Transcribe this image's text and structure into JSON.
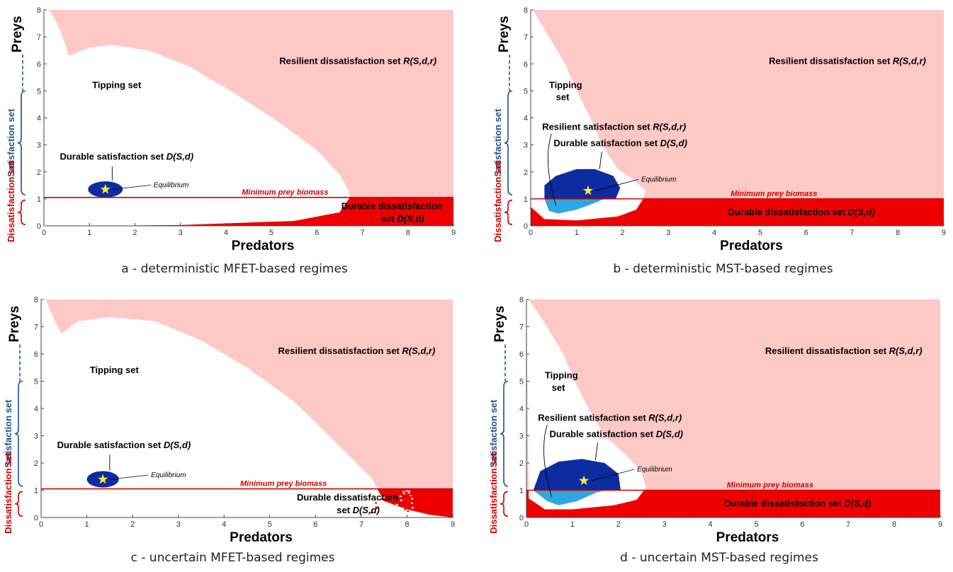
{
  "colors": {
    "resilient_dissatisfaction": "#fdc9c6",
    "durable_dissatisfaction": "#ee0000",
    "durable_satisfaction": "#0d2ca0",
    "resilient_satisfaction": "#2ea8e2",
    "tipping": "#ffffff",
    "threshold_line": "#cc0000",
    "equilibrium_star": "#ffee33",
    "satisfaction_axis": "#1f4e8c",
    "dissatisfaction_axis": "#cc0000"
  },
  "common": {
    "y_side_preys": "Preys",
    "y_side_satisfaction": "Satisfaction set",
    "y_side_dissatisfaction": "Dissatisfaction set",
    "x_label": "Predators",
    "min_prey_label": "Minimum prey biomass",
    "equilibrium_label": "Equilibrium",
    "x_ticks": [
      "0",
      "1",
      "2",
      "3",
      "4",
      "5",
      "6",
      "7",
      "8",
      "9"
    ],
    "y_ticks": [
      "0",
      "1",
      "2",
      "3",
      "4",
      "5",
      "6",
      "7",
      "8"
    ]
  },
  "panels": [
    {
      "caption": "a - deterministic MFET-based regimes",
      "labels": {
        "resilient_dissatisfaction": "Resilient dissatisfaction set ",
        "resilient_dissatisfaction_math": "R(S,d,r)",
        "tipping": "Tipping set",
        "durable_satisfaction": "Durable satisfaction set ",
        "durable_satisfaction_math": "D(S,d)",
        "durable_dissatisfaction_1": "Durable dissatisfaction",
        "durable_dissatisfaction_2": "set ",
        "durable_dissatisfaction_math": "D(S,d)"
      }
    },
    {
      "caption": "b - deterministic MST-based regimes",
      "labels": {
        "resilient_dissatisfaction": "Resilient dissatisfaction set ",
        "resilient_dissatisfaction_math": "R(S,d,r)",
        "tipping_1": "Tipping",
        "tipping_2": "set",
        "resilient_satisfaction": "Resilient satisfaction set ",
        "resilient_satisfaction_math": "R(S,d,r)",
        "durable_satisfaction": "Durable satisfaction set ",
        "durable_satisfaction_math": "D(S,d)",
        "durable_dissatisfaction": "Durable dissatisfaction set ",
        "durable_dissatisfaction_math": "D(S,d)"
      }
    },
    {
      "caption": "c - uncertain MFET-based regimes",
      "labels": {
        "resilient_dissatisfaction": "Resilient dissatisfaction set ",
        "resilient_dissatisfaction_math": "R(S,d,r)",
        "tipping": "Tipping set",
        "durable_satisfaction": "Durable satisfaction set ",
        "durable_satisfaction_math": "D(S,d)",
        "durable_dissatisfaction_1": "Durable dissatisfaction",
        "durable_dissatisfaction_2": "set ",
        "durable_dissatisfaction_math": "D(S,d)"
      }
    },
    {
      "caption": "d - uncertain MST-based regimes",
      "labels": {
        "resilient_dissatisfaction": "Resilient dissatisfaction set ",
        "resilient_dissatisfaction_math": "R(S,d,r)",
        "tipping_1": "Tipping",
        "tipping_2": "set",
        "resilient_satisfaction": "Resilient satisfaction set ",
        "resilient_satisfaction_math": "R(S,d,r)",
        "durable_satisfaction": "Durable satisfaction set ",
        "durable_satisfaction_math": "D(S,d)",
        "durable_dissatisfaction": "Durable dissatisfaction set ",
        "durable_dissatisfaction_math": "D(S,d)"
      }
    }
  ],
  "chart_data": [
    {
      "type": "heatmap",
      "title": "a - deterministic MFET-based regimes",
      "xlabel": "Predators",
      "ylabel": "Preys",
      "xlim": [
        0,
        9
      ],
      "ylim": [
        0,
        8
      ],
      "min_prey_biomass": 1.05,
      "equilibrium": [
        1.35,
        1.35
      ],
      "durable_satisfaction_ellipse": {
        "cx": 1.35,
        "cy": 1.35,
        "rx": 0.38,
        "ry": 0.3
      },
      "tipping_boundary": [
        [
          0.12,
          8
        ],
        [
          0.35,
          7.3
        ],
        [
          0.55,
          6.3
        ],
        [
          1.0,
          6.6
        ],
        [
          1.5,
          6.7
        ],
        [
          2.3,
          6.5
        ],
        [
          3.2,
          5.9
        ],
        [
          4.2,
          4.9
        ],
        [
          5.2,
          3.8
        ],
        [
          6.0,
          2.8
        ],
        [
          6.5,
          1.9
        ],
        [
          6.7,
          1.3
        ],
        [
          6.72,
          1.05
        ]
      ],
      "durable_dissatisfaction_boundary": [
        [
          6.72,
          1.05
        ],
        [
          6.5,
          0.5
        ],
        [
          5.5,
          0.18
        ],
        [
          3.0,
          0.03
        ],
        [
          1.0,
          0.0
        ]
      ]
    },
    {
      "type": "heatmap",
      "title": "b - deterministic MST-based regimes",
      "xlabel": "Predators",
      "ylabel": "Preys",
      "xlim": [
        0,
        9
      ],
      "ylim": [
        0,
        8
      ],
      "min_prey_biomass": 1.0,
      "equilibrium": [
        1.25,
        1.3
      ],
      "durable_satisfaction_boundary": [
        [
          0.3,
          1.0
        ],
        [
          0.3,
          1.5
        ],
        [
          0.55,
          1.85
        ],
        [
          1.0,
          2.1
        ],
        [
          1.4,
          2.1
        ],
        [
          1.8,
          1.85
        ],
        [
          1.95,
          1.4
        ],
        [
          1.85,
          1.0
        ]
      ],
      "resilient_satisfaction_boundary": [
        [
          0.3,
          1.0
        ],
        [
          0.4,
          0.55
        ],
        [
          0.6,
          0.45
        ],
        [
          1.0,
          0.6
        ],
        [
          1.4,
          0.85
        ],
        [
          1.6,
          1.0
        ]
      ],
      "tipping_boundary": [
        [
          0.05,
          8
        ],
        [
          0.4,
          7.0
        ],
        [
          0.75,
          6.0
        ],
        [
          1.0,
          5.0
        ],
        [
          1.3,
          4.0
        ],
        [
          1.55,
          3.0
        ],
        [
          1.9,
          2.1
        ],
        [
          2.25,
          1.7
        ],
        [
          2.5,
          1.3
        ],
        [
          2.45,
          1.0
        ],
        [
          2.3,
          0.6
        ],
        [
          1.9,
          0.35
        ],
        [
          1.0,
          0.2
        ],
        [
          0.3,
          0.25
        ],
        [
          0.0,
          0.7
        ]
      ],
      "durable_dissatisfaction_region": "y < 1.0 outside tipping set"
    },
    {
      "type": "heatmap",
      "title": "c - uncertain MFET-based regimes",
      "xlabel": "Predators",
      "ylabel": "Preys",
      "xlim": [
        0,
        9
      ],
      "ylim": [
        0,
        8
      ],
      "min_prey_biomass": 1.05,
      "equilibrium": [
        1.35,
        1.4
      ],
      "durable_satisfaction_ellipse": {
        "cx": 1.35,
        "cy": 1.4,
        "rx": 0.35,
        "ry": 0.3
      },
      "tipping_boundary": [
        [
          0.1,
          8
        ],
        [
          0.3,
          7.2
        ],
        [
          0.45,
          6.75
        ],
        [
          0.8,
          7.2
        ],
        [
          1.5,
          7.35
        ],
        [
          2.5,
          7.2
        ],
        [
          3.5,
          6.5
        ],
        [
          4.5,
          5.5
        ],
        [
          5.5,
          4.3
        ],
        [
          6.3,
          3.0
        ],
        [
          6.9,
          2.0
        ],
        [
          7.25,
          1.4
        ],
        [
          7.35,
          1.05
        ]
      ],
      "durable_dissatisfaction_boundary": [
        [
          7.35,
          1.05
        ],
        [
          7.5,
          0.6
        ],
        [
          8.0,
          0.3
        ],
        [
          8.5,
          0.1
        ],
        [
          9.0,
          0.0
        ]
      ]
    },
    {
      "type": "heatmap",
      "title": "d - uncertain MST-based regimes",
      "xlabel": "Predators",
      "ylabel": "Preys",
      "xlim": [
        0,
        9
      ],
      "ylim": [
        0,
        8
      ],
      "min_prey_biomass": 1.0,
      "equilibrium": [
        1.25,
        1.35
      ],
      "durable_satisfaction_boundary": [
        [
          0.15,
          1.0
        ],
        [
          0.3,
          1.7
        ],
        [
          0.7,
          2.05
        ],
        [
          1.2,
          2.15
        ],
        [
          1.7,
          2.0
        ],
        [
          2.0,
          1.6
        ],
        [
          2.05,
          1.0
        ]
      ],
      "resilient_satisfaction_boundary": [
        [
          0.15,
          1.0
        ],
        [
          0.45,
          0.6
        ],
        [
          0.7,
          0.45
        ],
        [
          1.1,
          0.6
        ],
        [
          1.5,
          0.9
        ],
        [
          1.7,
          1.0
        ]
      ],
      "tipping_boundary": [
        [
          0.05,
          8
        ],
        [
          0.45,
          7.0
        ],
        [
          0.8,
          6.0
        ],
        [
          1.05,
          5.0
        ],
        [
          1.35,
          4.0
        ],
        [
          1.7,
          3.0
        ],
        [
          2.1,
          2.4
        ],
        [
          2.5,
          1.7
        ],
        [
          2.6,
          1.1
        ],
        [
          2.4,
          0.65
        ],
        [
          1.9,
          0.45
        ],
        [
          1.0,
          0.3
        ],
        [
          0.4,
          0.3
        ],
        [
          0.05,
          0.7
        ]
      ],
      "durable_dissatisfaction_region": "y < 1.0 outside tipping set"
    }
  ]
}
